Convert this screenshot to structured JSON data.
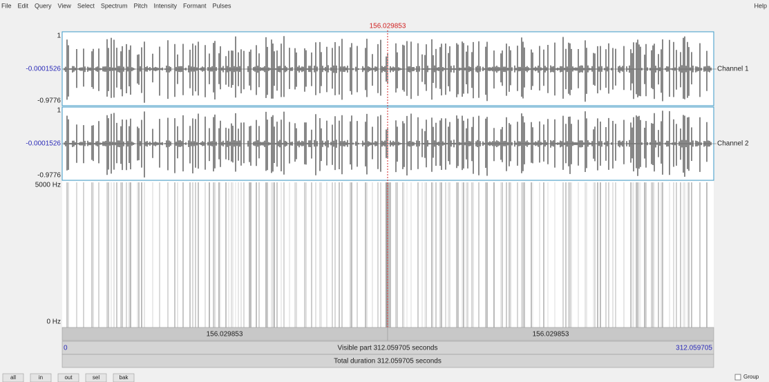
{
  "menu": [
    "File",
    "Edit",
    "Query",
    "View",
    "Select",
    "Spectrum",
    "Pitch",
    "Intensity",
    "Formant",
    "Pulses"
  ],
  "help": "Help",
  "cursor_time": "156.029853",
  "channels": [
    {
      "top": "1",
      "zero": "-0.0001526",
      "bottom": "-0.9776",
      "name": "Channel 1"
    },
    {
      "top": "1",
      "zero": "-0.0001526",
      "bottom": "-0.9776",
      "name": "Channel 2"
    }
  ],
  "spectrogram": {
    "top": "5000 Hz",
    "bottom": "0 Hz"
  },
  "time_bar": {
    "left_half": "156.029853",
    "right_half": "156.029853"
  },
  "visible_bar": {
    "start": "0",
    "label": "Visible part 312.059705 seconds",
    "end": "312.059705"
  },
  "total_bar": {
    "label": "Total duration 312.059705 seconds"
  },
  "buttons": [
    "all",
    "in",
    "out",
    "sel",
    "bak"
  ],
  "group": "Group"
}
